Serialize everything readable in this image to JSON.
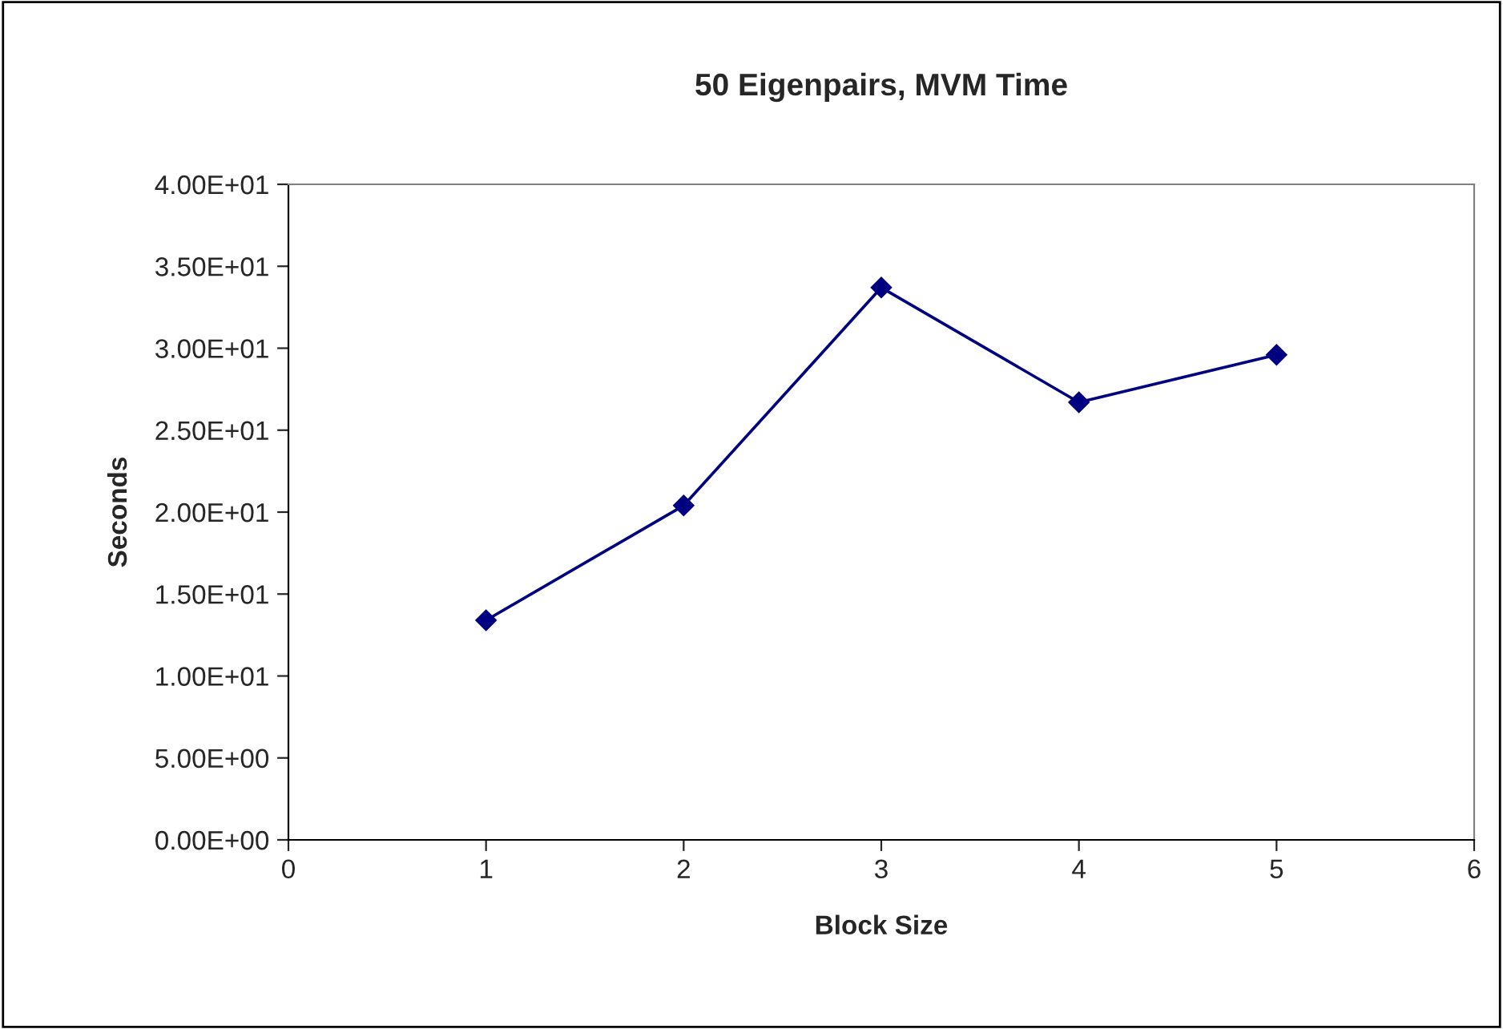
{
  "chart_data": {
    "type": "line",
    "title": "50 Eigenpairs, MVM Time",
    "xlabel": "Block Size",
    "ylabel": "Seconds",
    "x": [
      1,
      2,
      3,
      4,
      5
    ],
    "series": [
      {
        "color": "#000080",
        "values": [
          13.4,
          20.4,
          33.7,
          26.7,
          29.6
        ]
      }
    ],
    "xlim": [
      0,
      6
    ],
    "xticks": [
      0,
      1,
      2,
      3,
      4,
      5,
      6
    ],
    "ylim": [
      0,
      40
    ],
    "yticks": [
      {
        "value": 0,
        "label": "0.00E+00"
      },
      {
        "value": 5,
        "label": "5.00E+00"
      },
      {
        "value": 10,
        "label": "1.00E+01"
      },
      {
        "value": 15,
        "label": "1.50E+01"
      },
      {
        "value": 20,
        "label": "2.00E+01"
      },
      {
        "value": 25,
        "label": "2.50E+01"
      },
      {
        "value": 30,
        "label": "3.00E+01"
      },
      {
        "value": 35,
        "label": "3.50E+01"
      },
      {
        "value": 40,
        "label": "4.00E+01"
      }
    ],
    "grid": false,
    "legend": false,
    "marker": "diamond",
    "line_style": "solid"
  }
}
